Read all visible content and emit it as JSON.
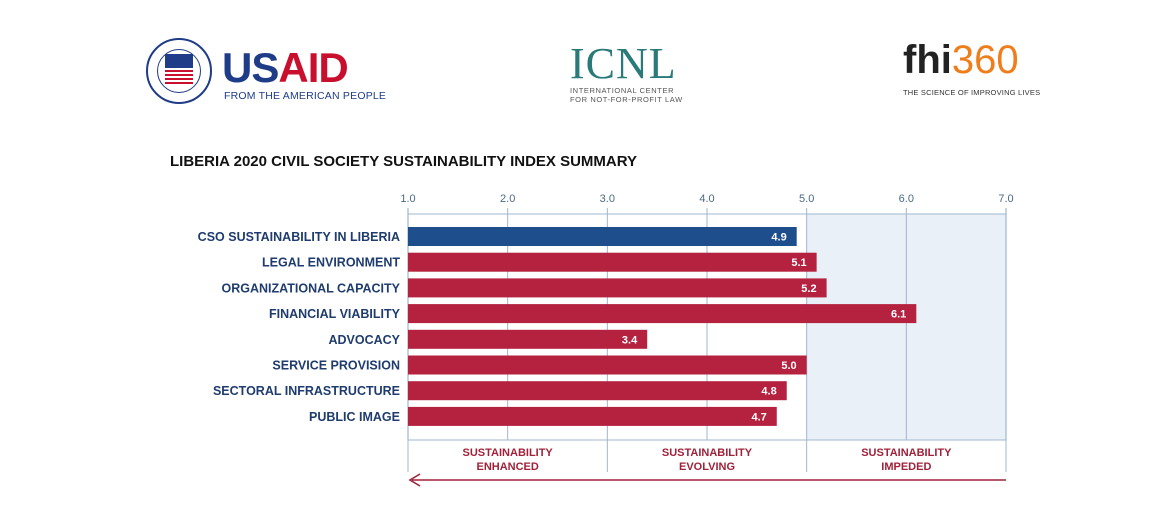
{
  "logos": {
    "usaid": {
      "us": "US",
      "aid": "AID",
      "tagline": "FROM THE AMERICAN PEOPLE"
    },
    "icnl": {
      "name": "ICNL",
      "tagline_1": "INTERNATIONAL CENTER",
      "tagline_2": "FOR NOT-FOR-PROFIT LAW"
    },
    "fhi": {
      "name": "fhi",
      "number": "360",
      "tagline": "THE SCIENCE OF IMPROVING LIVES"
    }
  },
  "chart_data": {
    "type": "bar",
    "orientation": "horizontal",
    "title": "LIBERIA 2020 CIVIL SOCIETY SUSTAINABILITY INDEX SUMMARY",
    "categories": [
      "CSO SUSTAINABILITY IN LIBERIA",
      "LEGAL ENVIRONMENT",
      "ORGANIZATIONAL CAPACITY",
      "FINANCIAL VIABILITY",
      "ADVOCACY",
      "SERVICE PROVISION",
      "SECTORAL INFRASTRUCTURE",
      "PUBLIC IMAGE"
    ],
    "values": [
      4.9,
      5.1,
      5.2,
      6.1,
      3.4,
      5.0,
      4.8,
      4.7
    ],
    "value_labels": [
      "4.9",
      "5.1",
      "5.2",
      "6.1",
      "3.4",
      "5.0",
      "4.8",
      "4.7"
    ],
    "xlim": [
      1.0,
      7.0
    ],
    "xticks": [
      "1.0",
      "2.0",
      "3.0",
      "4.0",
      "5.0",
      "6.0",
      "7.0"
    ],
    "xtick_values": [
      1,
      2,
      3,
      4,
      5,
      6,
      7
    ],
    "highlight_index": 0,
    "zones": [
      {
        "label_1": "SUSTAINABILITY",
        "label_2": "ENHANCED",
        "from": 1.0,
        "to": 3.0
      },
      {
        "label_1": "SUSTAINABILITY",
        "label_2": "EVOLVING",
        "from": 3.0,
        "to": 5.0
      },
      {
        "label_1": "SUSTAINABILITY",
        "label_2": "IMPEDED",
        "from": 5.0,
        "to": 7.0
      }
    ],
    "shaded_from": 5.0,
    "grid": true,
    "arrow_direction": "left",
    "colors": {
      "highlight_bar": "#1f4e8c",
      "bar": "#b5223f",
      "grid": "#9fb7cc",
      "shaded": "#e9f0f7",
      "tick_text": "#4a6a86",
      "category_text": "#1f3c6e",
      "zone_text": "#a0223a",
      "arrow": "#a0223a"
    }
  }
}
